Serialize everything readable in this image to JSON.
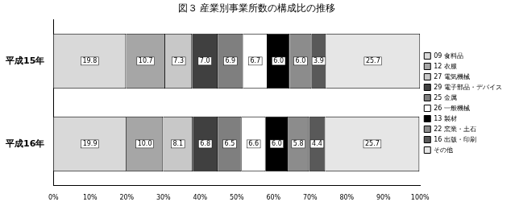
{
  "chart_data": {
    "type": "bar",
    "title": "図３ 産業別事業所数の構成比の推移",
    "orientation": "horizontal",
    "stacked": true,
    "grid": false,
    "legend": "right",
    "data_labels": true,
    "categories": [
      "平成15年",
      "平成16年"
    ],
    "xlim": [
      0,
      100
    ],
    "xticks": [
      {
        "value": 0,
        "label": "0%"
      },
      {
        "value": 10,
        "label": "10%"
      },
      {
        "value": 20,
        "label": "20%"
      },
      {
        "value": 30,
        "label": "30%"
      },
      {
        "value": 40,
        "label": "40%"
      },
      {
        "value": 50,
        "label": "50%"
      },
      {
        "value": 60,
        "label": "60%"
      },
      {
        "value": 70,
        "label": "70%"
      },
      {
        "value": 80,
        "label": "80%"
      },
      {
        "value": 90,
        "label": "90%"
      },
      {
        "value": 100,
        "label": "100%"
      }
    ],
    "series": [
      {
        "name": "09 食料品",
        "color": "#d9d9d9",
        "values": [
          19.8,
          19.9
        ],
        "value_labels": [
          "19.8",
          "19.9"
        ]
      },
      {
        "name": "12 衣服",
        "color": "#a6a6a6",
        "values": [
          10.7,
          10.0
        ],
        "value_labels": [
          "10.7",
          "10.0"
        ]
      },
      {
        "name": "27 電気機械",
        "color": "#c8c8c8",
        "values": [
          7.3,
          8.1
        ],
        "value_labels": [
          "7.3",
          "8.1"
        ]
      },
      {
        "name": "29 電子部品・デバイス",
        "color": "#404040",
        "values": [
          7.0,
          6.8
        ],
        "value_labels": [
          "7.0",
          "6.8"
        ]
      },
      {
        "name": "25 金属",
        "color": "#7f7f7f",
        "values": [
          6.9,
          6.5
        ],
        "value_labels": [
          "6.9",
          "6.5"
        ]
      },
      {
        "name": "26 一般機械",
        "color": "#ffffff",
        "values": [
          6.7,
          6.6
        ],
        "value_labels": [
          "6.7",
          "6.6"
        ]
      },
      {
        "name": "13 製材",
        "color": "#000000",
        "values": [
          6.0,
          6.0
        ],
        "value_labels": [
          "6.0",
          "6.0"
        ]
      },
      {
        "name": "22 窯業・土石",
        "color": "#8c8c8c",
        "values": [
          6.0,
          5.8
        ],
        "value_labels": [
          "6.0",
          "5.8"
        ]
      },
      {
        "name": "16 出版・印刷",
        "color": "#595959",
        "values": [
          3.9,
          4.4
        ],
        "value_labels": [
          "3.9",
          "4.4"
        ]
      },
      {
        "name": "その他",
        "color": "#e6e6e6",
        "values": [
          25.7,
          25.7
        ],
        "value_labels": [
          "25.7",
          "25.7"
        ]
      }
    ]
  }
}
